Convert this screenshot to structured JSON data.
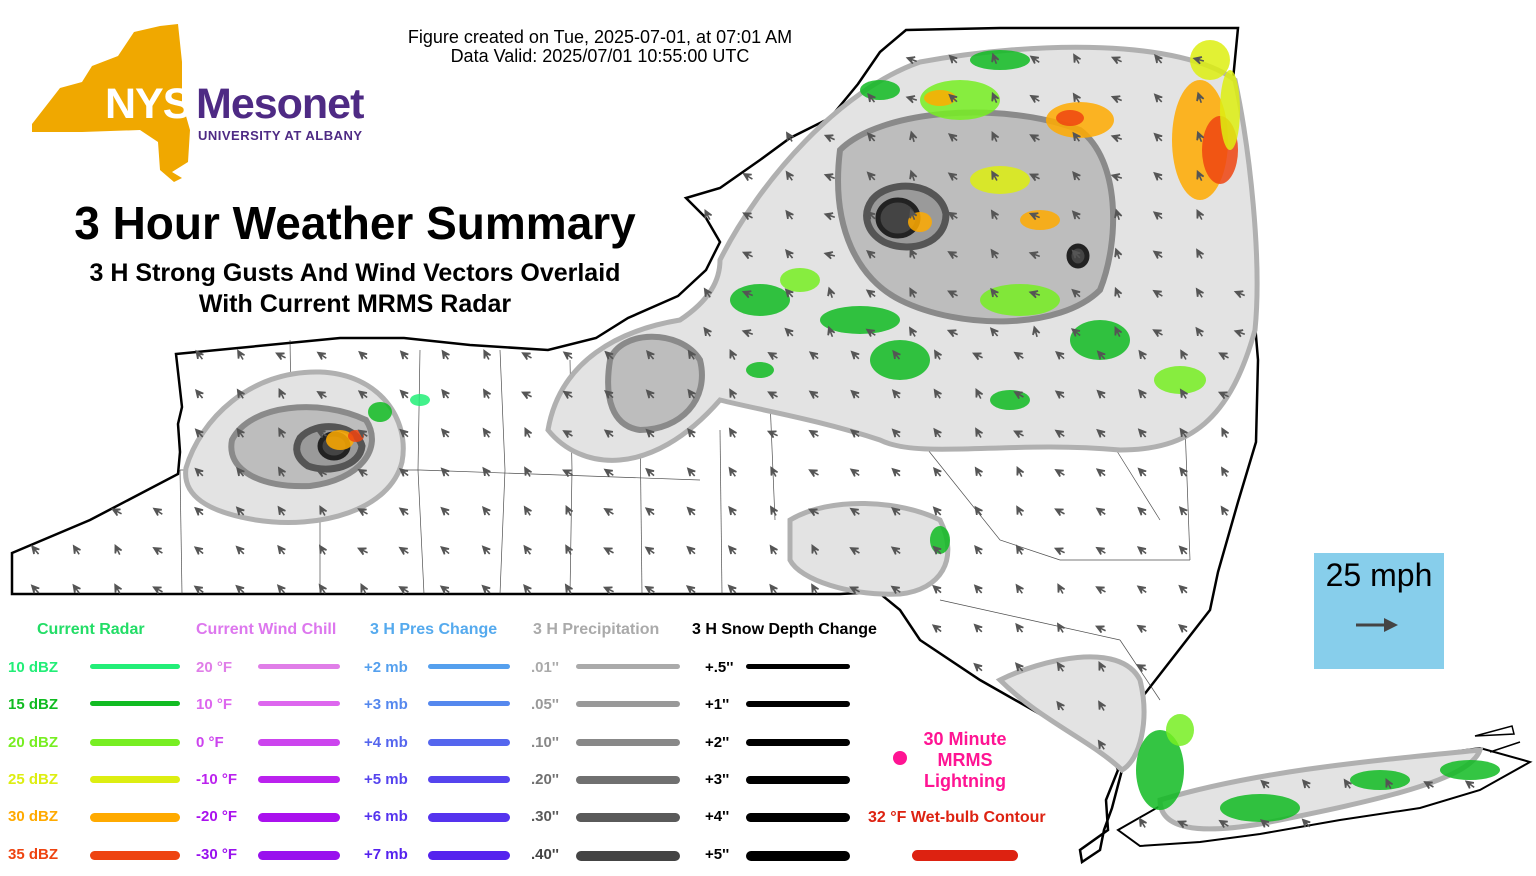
{
  "header": {
    "created_line": "Figure created on Tue, 2025-07-01, at 07:01 AM",
    "valid_line": "Data Valid: 2025/07/01 10:55:00 UTC"
  },
  "logo": {
    "nys": "NYS",
    "mesonet": "Mesonet",
    "university": "UNIVERSITY AT ALBANY",
    "gold_color": "#f0a800",
    "purple_color": "#4e2a84"
  },
  "title": "3 Hour Weather Summary",
  "subtitle_line1": "3 H Strong Gusts And Wind Vectors Overlaid",
  "subtitle_line2": "With Current MRMS Radar",
  "scale": {
    "label": "25 mph",
    "background": "#87ceeb"
  },
  "legend": {
    "radar": {
      "header": "Current Radar",
      "header_color": "#22dd66",
      "items": [
        {
          "label": "10 dBZ",
          "color": "#22ee77"
        },
        {
          "label": "15 dBZ",
          "color": "#11bb22"
        },
        {
          "label": "20 dBZ",
          "color": "#77ee22"
        },
        {
          "label": "25 dBZ",
          "color": "#ddee11"
        },
        {
          "label": "30 dBZ",
          "color": "#ffaa00"
        },
        {
          "label": "35 dBZ",
          "color": "#ee4411"
        }
      ]
    },
    "wind_chill": {
      "header": "Current Wind Chill",
      "header_color": "#dd77ee",
      "items": [
        {
          "label": "20 °F",
          "color": "#e07ee8"
        },
        {
          "label": "10 °F",
          "color": "#dd66ee"
        },
        {
          "label": "0 °F",
          "color": "#cc44ee"
        },
        {
          "label": "-10 °F",
          "color": "#bb22ee"
        },
        {
          "label": "-20 °F",
          "color": "#aa11ee"
        },
        {
          "label": "-30 °F",
          "color": "#9911ee"
        }
      ]
    },
    "pressure": {
      "header": "3 H Pres Change",
      "header_color": "#55aaee",
      "items": [
        {
          "label": "+2 mb",
          "color": "#55a0ee"
        },
        {
          "label": "+3 mb",
          "color": "#5588ee"
        },
        {
          "label": "+4 mb",
          "color": "#5566ee"
        },
        {
          "label": "+5 mb",
          "color": "#5544ee"
        },
        {
          "label": "+6 mb",
          "color": "#5533ee"
        },
        {
          "label": "+7 mb",
          "color": "#5522ee"
        }
      ]
    },
    "precip": {
      "header": "3 H Precipitation",
      "header_color": "#aaaaaa",
      "items": [
        {
          "label": ".01''",
          "color": "#aaaaaa"
        },
        {
          "label": ".05''",
          "color": "#999999"
        },
        {
          "label": ".10''",
          "color": "#888888"
        },
        {
          "label": ".20''",
          "color": "#707070"
        },
        {
          "label": ".30''",
          "color": "#5a5a5a"
        },
        {
          "label": ".40''",
          "color": "#444444"
        }
      ]
    },
    "snow": {
      "header": "3 H Snow Depth Change",
      "header_color": "#000000",
      "items": [
        {
          "label": "+.5''",
          "color": "#000000"
        },
        {
          "label": "+1''",
          "color": "#000000"
        },
        {
          "label": "+2''",
          "color": "#000000"
        },
        {
          "label": "+3''",
          "color": "#000000"
        },
        {
          "label": "+4''",
          "color": "#000000"
        },
        {
          "label": "+5''",
          "color": "#000000"
        }
      ]
    },
    "lightning": {
      "line1": "30 Minute",
      "line2": "MRMS",
      "line3": "Lightning",
      "color": "#ff1493"
    },
    "wet_bulb": {
      "label": "32 °F Wet-bulb Contour",
      "color": "#dd2211"
    }
  },
  "map": {
    "state_fill": "#ffffff",
    "precip_shade": "#e6e6e6",
    "arrow_color": "#555555",
    "wind_direction_deg": 225
  }
}
